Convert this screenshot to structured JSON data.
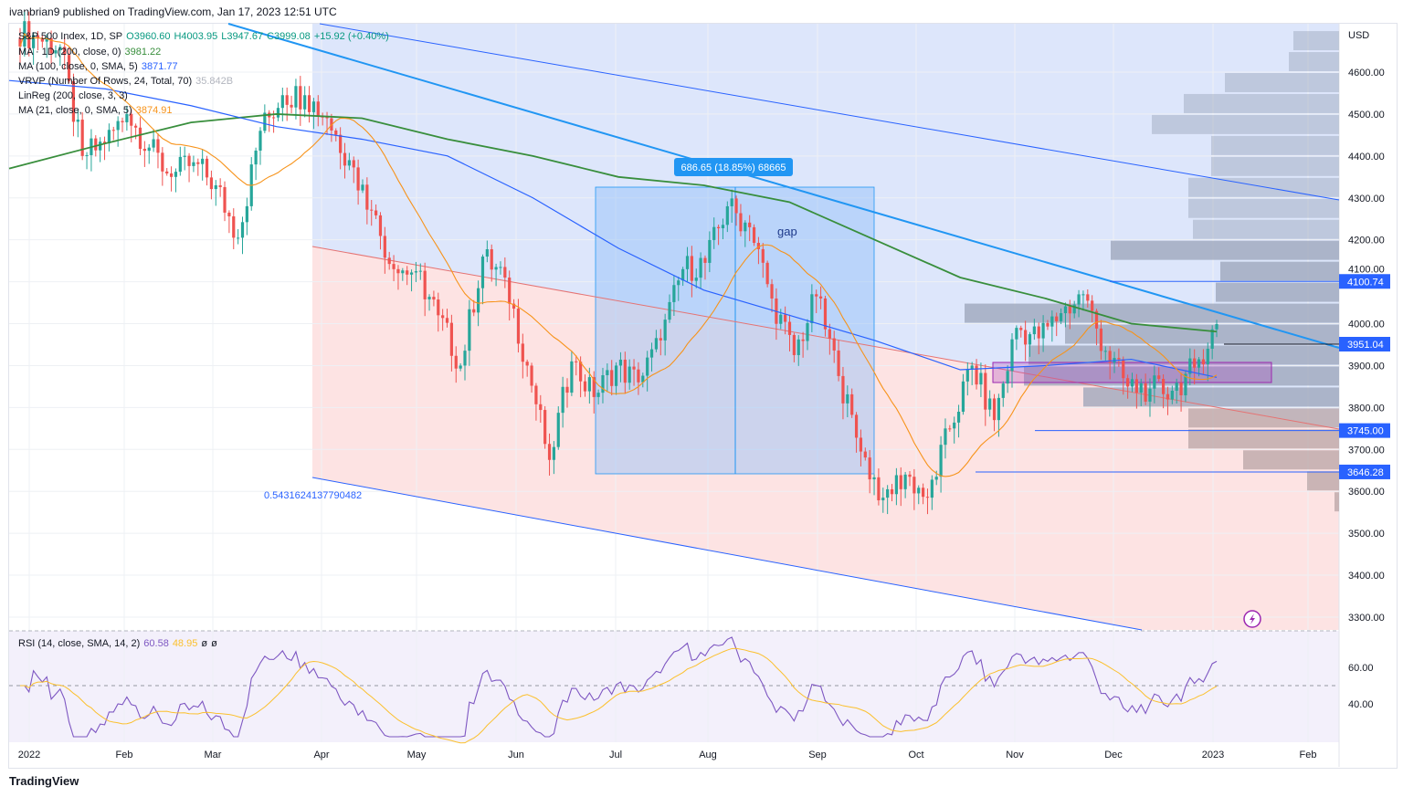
{
  "header": "ivanbrian9 published on TradingView.com, Jan 17, 2023 12:51 UTC",
  "legend": {
    "symbol": "S&P 500 Index, 1D, SP",
    "open": "O3960.60",
    "high": "H4003.95",
    "low": "L3947.67",
    "close": "C3999.08",
    "change": "+15.92 (+0.40%)",
    "ma200": "MA · 1D (200, close, 0)",
    "ma200_val": "3981.22",
    "ma100": "MA (100, close, 0, SMA, 5)",
    "ma100_val": "3871.77",
    "vrvp": "VRVP (Number Of Rows, 24, Total, 70)",
    "vrvp_val": "35.842B",
    "linreg": "LinReg (200, close, 3, 3)",
    "ma21": "MA (21, close, 0, SMA, 5)",
    "ma21_val": "3874.91",
    "rsi": "RSI (14, close, SMA, 14, 2)",
    "rsi_val": "60.58",
    "rsi_ma": "48.95",
    "rsi_x1": "ø",
    "rsi_x2": "ø"
  },
  "annotations": {
    "measure": "686.65 (18.85%) 68665",
    "gap": "gap",
    "pearson": "0.5431624137790482"
  },
  "price_labels": [
    "3951.04",
    "3745.00",
    "3646.28",
    "4100.74"
  ],
  "footer": "TradingView",
  "colors": {
    "up": "#26a69a",
    "down": "#ef5350",
    "ma200": "#388e3c",
    "ma100": "#2962ff",
    "ma21": "#f7931a",
    "rsi": "#7e57c2",
    "rsi_ma": "#fbc02d"
  },
  "chart_data": {
    "type": "candlestick",
    "title": "S&P 500 Index, 1D",
    "currency": "USD",
    "ylim": [
      3250,
      4720
    ],
    "y_ticks": [
      "4600.00",
      "4500.00",
      "4400.00",
      "4300.00",
      "4200.00",
      "4100.00",
      "4000.00",
      "3900.00",
      "3800.00",
      "3700.00",
      "3600.00",
      "3500.00",
      "3400.00",
      "3300.00"
    ],
    "x_ticks": [
      "2022",
      "Feb",
      "Mar",
      "Apr",
      "May",
      "Jun",
      "Jul",
      "Aug",
      "Sep",
      "Oct",
      "Nov",
      "Dec",
      "2023",
      "Feb"
    ],
    "weekly_close": [
      4680,
      4660,
      4400,
      4430,
      4500,
      4420,
      4350,
      4385,
      4330,
      4205,
      4460,
      4545,
      4545,
      4490,
      4390,
      4270,
      4130,
      4125,
      4020,
      3900,
      4160,
      4110,
      3900,
      3675,
      3910,
      3825,
      3900,
      3860,
      3960,
      4130,
      4145,
      4280,
      4230,
      4060,
      3925,
      4065,
      3875,
      3695,
      3585,
      3640,
      3585,
      3750,
      3900,
      3770,
      3990,
      3965,
      4025,
      4070,
      3935,
      3850,
      3845,
      3840,
      3895,
      3999
    ],
    "ma200_approx": [
      4370,
      4430,
      4480,
      4500,
      4490,
      4440,
      4400,
      4350,
      4330,
      4290,
      4200,
      4110,
      4060,
      4000,
      3981
    ],
    "ma100_approx": [
      4580,
      4560,
      4520,
      4470,
      4440,
      4400,
      4300,
      4180,
      4080,
      4020,
      3960,
      3890,
      3900,
      3915,
      3872
    ],
    "rsi_ticks": [
      "60.00",
      "40.00"
    ],
    "rsi_range": [
      20,
      80
    ]
  }
}
